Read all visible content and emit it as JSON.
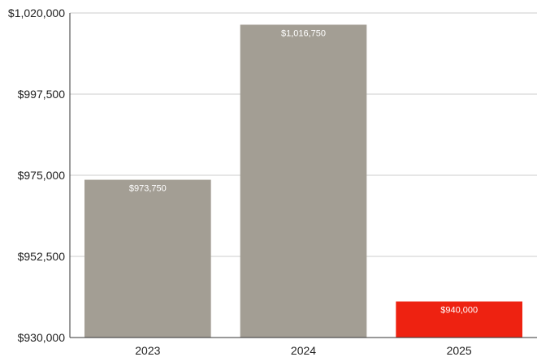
{
  "chart_data": {
    "type": "bar",
    "categories": [
      "2023",
      "2024",
      "2025"
    ],
    "values": [
      973750,
      1016750,
      940000
    ],
    "data_labels": [
      "$973,750",
      "$1,016,750",
      "$940,000"
    ],
    "bar_colors": [
      "#a39e94",
      "#a39e94",
      "#ee2211"
    ],
    "ylim": [
      930000,
      1020000
    ],
    "yticks": [
      930000,
      952500,
      975000,
      997500,
      1020000
    ],
    "ytick_labels": [
      "$930,000",
      "$952,500",
      "$975,000",
      "$997,500",
      "$1,020,000"
    ],
    "title": "",
    "xlabel": "",
    "ylabel": "",
    "grid": true,
    "colors": {
      "grid": "#cccccc",
      "axis": "#333333"
    }
  }
}
